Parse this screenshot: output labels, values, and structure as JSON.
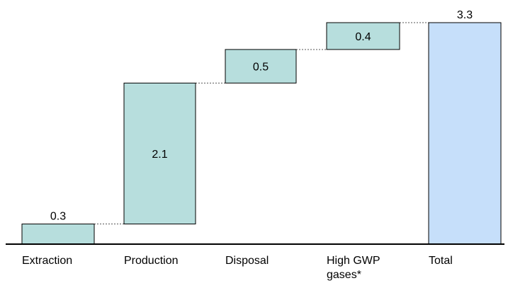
{
  "chart_data": {
    "type": "bar",
    "subtype": "waterfall",
    "categories": [
      "Extraction",
      "Production",
      "Disposal",
      "High GWP\ngases*",
      "Total"
    ],
    "values": [
      0.3,
      2.1,
      0.5,
      0.4,
      3.3
    ],
    "value_labels": [
      "0.3",
      "2.1",
      "0.5",
      "0.4",
      "3.3"
    ],
    "is_total": [
      false,
      false,
      false,
      false,
      true
    ],
    "connector_lines": true,
    "ylim": [
      0,
      3.3
    ],
    "grid": false,
    "colors": {
      "increment_fill": "#b7dedd",
      "total_fill": "#c6dffa",
      "bar_stroke": "#000000",
      "axis": "#000000",
      "connector": "#555555"
    }
  }
}
